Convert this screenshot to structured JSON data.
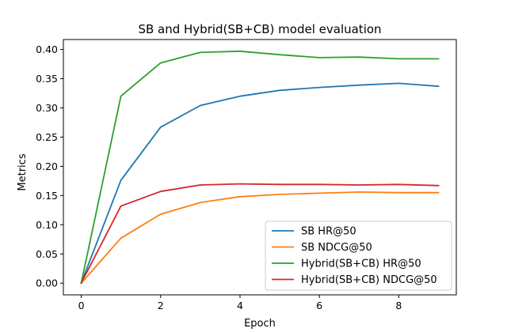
{
  "chart_data": {
    "type": "line",
    "title": "SB and Hybrid(SB+CB) model evaluation",
    "xlabel": "Epoch",
    "ylabel": "Metrics",
    "x": [
      0,
      1,
      2,
      3,
      4,
      5,
      6,
      7,
      8,
      9
    ],
    "xlim": [
      -0.45,
      9.45
    ],
    "ylim": [
      -0.02,
      0.417
    ],
    "xticks": [
      0,
      2,
      4,
      6,
      8
    ],
    "yticks": [
      0.0,
      0.05,
      0.1,
      0.15,
      0.2,
      0.25,
      0.3,
      0.35,
      0.4
    ],
    "ytick_labels": [
      "0.00",
      "0.05",
      "0.10",
      "0.15",
      "0.20",
      "0.25",
      "0.30",
      "0.35",
      "0.40"
    ],
    "grid": false,
    "legend_position": "bottom-right",
    "series": [
      {
        "name": "SB HR@50",
        "color": "#1f77b4",
        "values": [
          0.0,
          0.176,
          0.267,
          0.304,
          0.32,
          0.33,
          0.335,
          0.339,
          0.342,
          0.337
        ]
      },
      {
        "name": "SB NDCG@50",
        "color": "#ff7f0e",
        "values": [
          0.0,
          0.077,
          0.118,
          0.138,
          0.148,
          0.152,
          0.154,
          0.156,
          0.155,
          0.155
        ]
      },
      {
        "name": "Hybrid(SB+CB) HR@50",
        "color": "#2ca02c",
        "values": [
          0.0,
          0.32,
          0.377,
          0.395,
          0.397,
          0.391,
          0.386,
          0.387,
          0.384,
          0.384
        ]
      },
      {
        "name": "Hybrid(SB+CB) NDCG@50",
        "color": "#d62728",
        "values": [
          0.0,
          0.132,
          0.157,
          0.168,
          0.17,
          0.169,
          0.169,
          0.168,
          0.169,
          0.167
        ]
      }
    ]
  }
}
